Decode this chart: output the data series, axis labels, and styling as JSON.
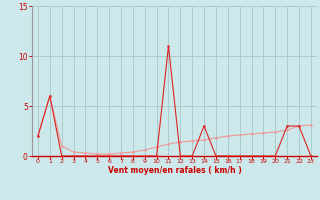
{
  "x": [
    0,
    1,
    2,
    3,
    4,
    5,
    6,
    7,
    8,
    9,
    10,
    11,
    12,
    13,
    14,
    15,
    16,
    17,
    18,
    19,
    20,
    21,
    22,
    23
  ],
  "counts": [
    2,
    6,
    0,
    0,
    0,
    0,
    0,
    0,
    0,
    0,
    0,
    11,
    0,
    0,
    3,
    0,
    0,
    0,
    0,
    0,
    0,
    3,
    3,
    0
  ],
  "trend": [
    2.0,
    6.0,
    1.0,
    0.4,
    0.3,
    0.2,
    0.2,
    0.3,
    0.4,
    0.6,
    0.9,
    1.2,
    1.4,
    1.5,
    1.6,
    1.8,
    2.0,
    2.1,
    2.2,
    2.3,
    2.4,
    2.6,
    3.0,
    3.1
  ],
  "bg_color": "#cce8ea",
  "grid_color": "#aacccc",
  "line1_color": "#dd2222",
  "line2_color": "#ee9999",
  "xlabel": "Vent moyen/en rafales ( km/h )",
  "xlabel_color": "#cc0000",
  "tick_color": "#cc0000",
  "ylim": [
    0,
    15
  ],
  "xlim": [
    -0.5,
    23.5
  ],
  "yticks": [
    0,
    5,
    10,
    15
  ],
  "xticks": [
    0,
    1,
    2,
    3,
    4,
    5,
    6,
    7,
    8,
    9,
    10,
    11,
    12,
    13,
    14,
    15,
    16,
    17,
    18,
    19,
    20,
    21,
    22,
    23
  ]
}
